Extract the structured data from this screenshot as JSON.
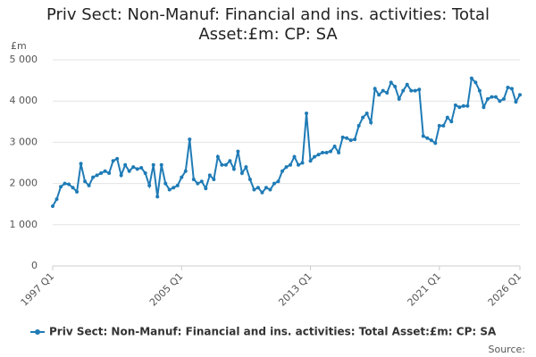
{
  "chart_data": {
    "type": "line",
    "title": "Priv Sect: Non-Manuf: Financial and ins. activities: Total Asset:£m: CP: SA",
    "y_label": "£m",
    "source": "Source:",
    "categories": [
      "1997 Q1",
      null,
      null,
      null,
      null,
      null,
      null,
      null,
      null,
      null,
      null,
      null,
      null,
      null,
      null,
      null,
      null,
      null,
      null,
      null,
      null,
      null,
      null,
      null,
      null,
      null,
      null,
      null,
      null,
      null,
      null,
      null,
      "2005 Q1",
      null,
      null,
      null,
      null,
      null,
      null,
      null,
      null,
      null,
      null,
      null,
      null,
      null,
      null,
      null,
      null,
      null,
      null,
      null,
      null,
      null,
      null,
      null,
      null,
      null,
      null,
      null,
      null,
      null,
      null,
      null,
      "2013 Q1",
      null,
      null,
      null,
      null,
      null,
      null,
      null,
      null,
      null,
      null,
      null,
      null,
      null,
      null,
      null,
      null,
      null,
      null,
      null,
      null,
      null,
      null,
      null,
      null,
      null,
      null,
      null,
      null,
      null,
      null,
      null,
      "2021 Q1",
      null,
      null,
      null,
      null,
      null,
      null,
      null,
      null,
      null,
      null,
      null,
      null,
      null,
      null,
      null,
      null,
      null,
      null,
      null,
      "2026 Q1"
    ],
    "series": [
      {
        "name": "Priv Sect: Non-Manuf: Financial and ins. activities: Total Asset:£m: CP: SA",
        "color": "#1f7bb6",
        "values": [
          1450,
          1620,
          1920,
          2000,
          1980,
          1900,
          1800,
          2480,
          2050,
          1950,
          2150,
          2200,
          2250,
          2300,
          2250,
          2550,
          2600,
          2200,
          2450,
          2300,
          2400,
          2350,
          2380,
          2250,
          1950,
          2450,
          1680,
          2450,
          2000,
          1850,
          1900,
          1950,
          2150,
          2300,
          3070,
          2100,
          2000,
          2050,
          1880,
          2200,
          2100,
          2650,
          2450,
          2450,
          2550,
          2350,
          2780,
          2250,
          2400,
          2100,
          1850,
          1900,
          1780,
          1900,
          1850,
          2000,
          2050,
          2300,
          2400,
          2450,
          2650,
          2450,
          2500,
          3700,
          2550,
          2650,
          2700,
          2750,
          2750,
          2780,
          2900,
          2750,
          3120,
          3100,
          3050,
          3070,
          3400,
          3600,
          3700,
          3480,
          4300,
          4150,
          4250,
          4200,
          4450,
          4350,
          4050,
          4250,
          4400,
          4250,
          4250,
          4280,
          3150,
          3100,
          3050,
          2980,
          3400,
          3400,
          3600,
          3500,
          3900,
          3850,
          3880,
          3880,
          4550,
          4450,
          4250,
          3850,
          4050,
          4100,
          4100,
          4000,
          4050,
          4330,
          4300,
          3980,
          4150
        ]
      }
    ],
    "ylim": [
      0,
      5000
    ],
    "yticks": [
      0,
      {
        "value": 1000,
        "label": "1 000"
      },
      {
        "value": 2000,
        "label": "2 000"
      },
      {
        "value": 3000,
        "label": "3 000"
      },
      {
        "value": 4000,
        "label": "4 000"
      },
      {
        "value": 5000,
        "label": "5 000"
      }
    ],
    "grid": true
  }
}
